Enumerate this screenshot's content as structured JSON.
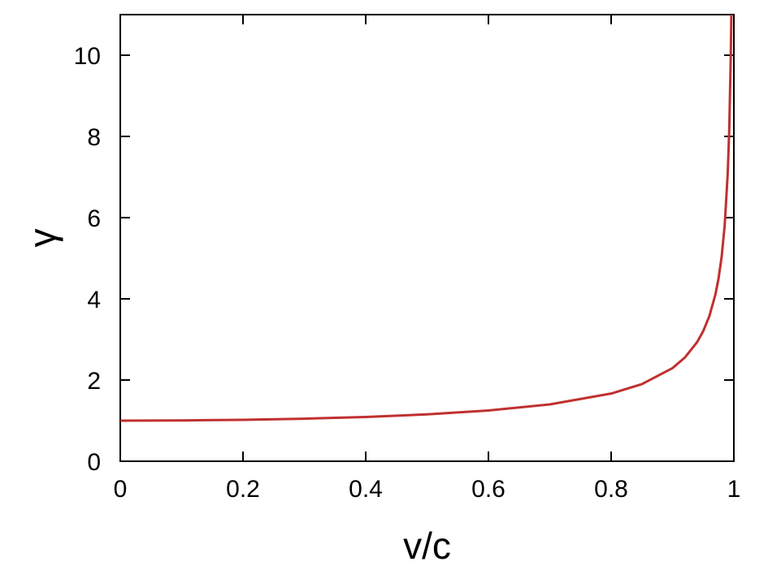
{
  "chart_data": {
    "type": "line",
    "title": "",
    "xlabel": "v/c",
    "ylabel": "γ",
    "xlim": [
      0,
      1
    ],
    "ylim": [
      0,
      11
    ],
    "xticks": [
      "0",
      "0.2",
      "0.4",
      "0.6",
      "0.8",
      "1"
    ],
    "yticks": [
      "0",
      "2",
      "4",
      "6",
      "8",
      "10"
    ],
    "grid": false,
    "legend": "none",
    "series": [
      {
        "color": "#c0302f",
        "x": [
          0,
          0.1,
          0.2,
          0.3,
          0.4,
          0.5,
          0.6,
          0.7,
          0.8,
          0.85,
          0.9,
          0.92,
          0.94,
          0.95,
          0.96,
          0.97,
          0.975,
          0.98,
          0.985,
          0.99,
          0.9925,
          0.995,
          0.9959
        ],
        "y": [
          1.0,
          1.005,
          1.021,
          1.048,
          1.091,
          1.155,
          1.25,
          1.4,
          1.667,
          1.898,
          2.294,
          2.552,
          2.931,
          3.203,
          3.571,
          4.113,
          4.5,
          5.025,
          5.795,
          7.089,
          8.174,
          10.013,
          11.0
        ]
      }
    ]
  }
}
